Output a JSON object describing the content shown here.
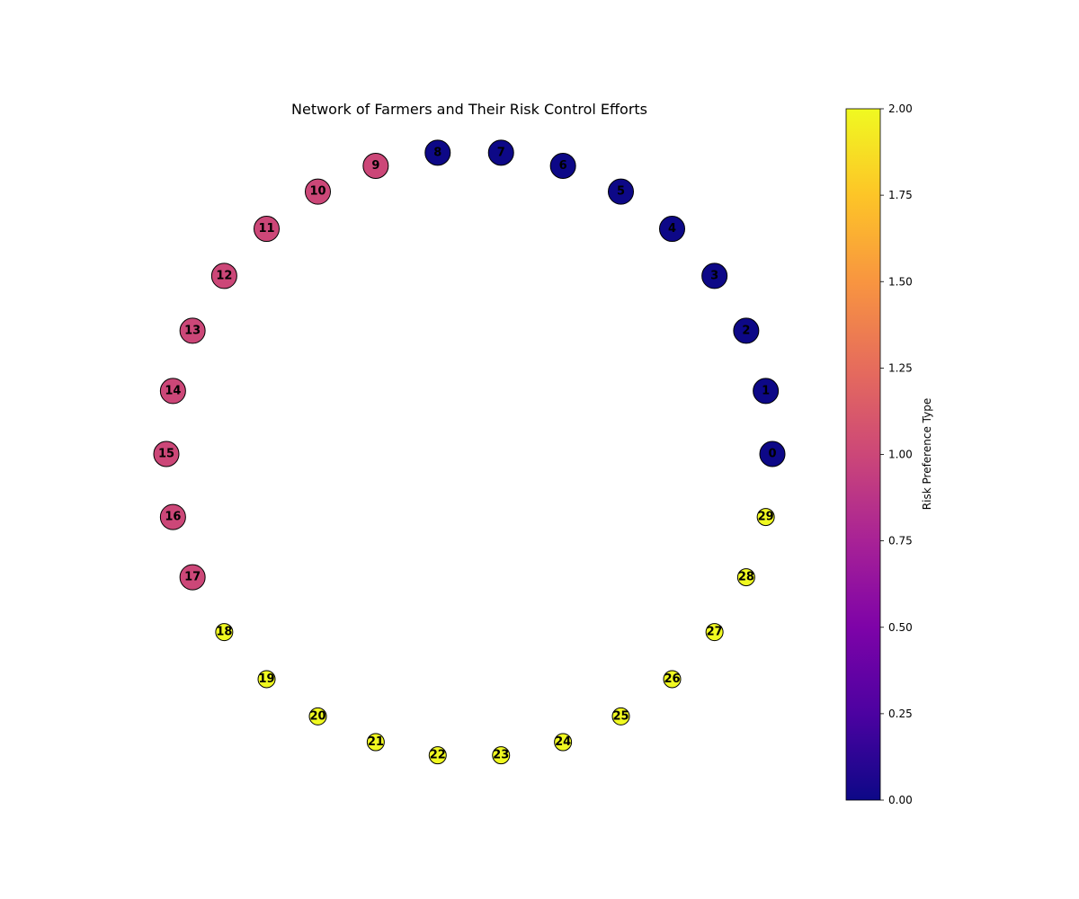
{
  "chart_data": {
    "type": "network",
    "title": "Network of Farmers and Their Risk Control Efforts",
    "layout": "circular",
    "nodes": [
      {
        "id": "0",
        "risk_type": 0,
        "size": "large"
      },
      {
        "id": "1",
        "risk_type": 0,
        "size": "large"
      },
      {
        "id": "2",
        "risk_type": 0,
        "size": "large"
      },
      {
        "id": "3",
        "risk_type": 0,
        "size": "large"
      },
      {
        "id": "4",
        "risk_type": 0,
        "size": "large"
      },
      {
        "id": "5",
        "risk_type": 0,
        "size": "large"
      },
      {
        "id": "6",
        "risk_type": 0,
        "size": "large"
      },
      {
        "id": "7",
        "risk_type": 0,
        "size": "large"
      },
      {
        "id": "8",
        "risk_type": 0,
        "size": "large"
      },
      {
        "id": "9",
        "risk_type": 1,
        "size": "large"
      },
      {
        "id": "10",
        "risk_type": 1,
        "size": "large"
      },
      {
        "id": "11",
        "risk_type": 1,
        "size": "large"
      },
      {
        "id": "12",
        "risk_type": 1,
        "size": "large"
      },
      {
        "id": "13",
        "risk_type": 1,
        "size": "large"
      },
      {
        "id": "14",
        "risk_type": 1,
        "size": "large"
      },
      {
        "id": "15",
        "risk_type": 1,
        "size": "large"
      },
      {
        "id": "16",
        "risk_type": 1,
        "size": "large"
      },
      {
        "id": "17",
        "risk_type": 1,
        "size": "large"
      },
      {
        "id": "18",
        "risk_type": 2,
        "size": "small"
      },
      {
        "id": "19",
        "risk_type": 2,
        "size": "small"
      },
      {
        "id": "20",
        "risk_type": 2,
        "size": "small"
      },
      {
        "id": "21",
        "risk_type": 2,
        "size": "small"
      },
      {
        "id": "22",
        "risk_type": 2,
        "size": "small"
      },
      {
        "id": "23",
        "risk_type": 2,
        "size": "small"
      },
      {
        "id": "24",
        "risk_type": 2,
        "size": "small"
      },
      {
        "id": "25",
        "risk_type": 2,
        "size": "small"
      },
      {
        "id": "26",
        "risk_type": 2,
        "size": "small"
      },
      {
        "id": "27",
        "risk_type": 2,
        "size": "small"
      },
      {
        "id": "28",
        "risk_type": 2,
        "size": "small"
      },
      {
        "id": "29",
        "risk_type": 2,
        "size": "small"
      }
    ],
    "colorbar": {
      "label": "Risk Preference Type",
      "colormap": "plasma",
      "range": [
        0.0,
        2.0
      ],
      "ticks": [
        "0.00",
        "0.25",
        "0.50",
        "0.75",
        "1.00",
        "1.25",
        "1.50",
        "1.75",
        "2.00"
      ],
      "tick_values": [
        0.0,
        0.25,
        0.5,
        0.75,
        1.0,
        1.25,
        1.5,
        1.75,
        2.0
      ]
    },
    "colors": {
      "type_0": "#0d0887",
      "type_1": "#cc4778",
      "type_2": "#f0f921",
      "edge": "#000000"
    }
  }
}
